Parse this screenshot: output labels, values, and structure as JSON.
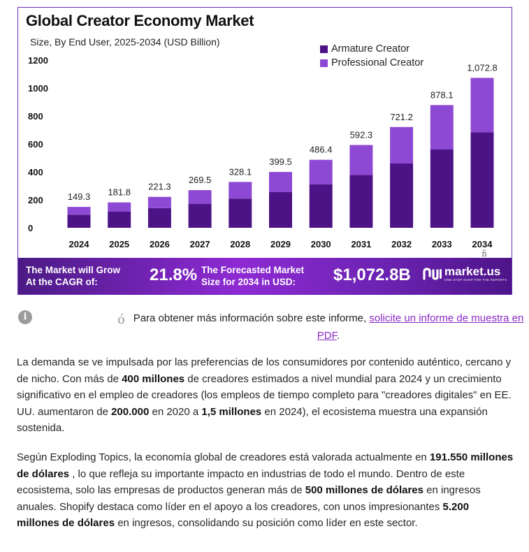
{
  "chart_data": {
    "type": "bar",
    "stacked": true,
    "title": "Global Creator Economy Market",
    "subtitle": "Size, By End User, 2025-2034 (USD Billion)",
    "categories": [
      "2024",
      "2025",
      "2026",
      "2027",
      "2028",
      "2029",
      "2030",
      "2031",
      "2032",
      "2033",
      "2034"
    ],
    "series": [
      {
        "name": "Armature Creator",
        "color": "#4c1386",
        "values": [
          94,
          115,
          141,
          172,
          209,
          255,
          310,
          378,
          460,
          560,
          684
        ]
      },
      {
        "name": "Professional Creator",
        "color": "#8d49d3",
        "values": [
          55.3,
          66.8,
          80.3,
          97.5,
          119.1,
          144.5,
          176.4,
          214.3,
          261.2,
          318.1,
          388.8
        ]
      }
    ],
    "totals_labels": [
      "149.3",
      "181.8",
      "221.3",
      "269.5",
      "328.1",
      "399.5",
      "486.4",
      "592.3",
      "721.2",
      "878.1",
      "1,072.8"
    ],
    "yticks": [
      "0",
      "200",
      "400",
      "600",
      "800",
      "1000",
      "1200"
    ],
    "ylim": [
      0,
      1200
    ],
    "xlabel": "",
    "ylabel": "",
    "stray_mark": "ñ"
  },
  "banner": {
    "cagr_label": "The Market will Grow\nAt the CAGR of:",
    "cagr_value": "21.8%",
    "forecast_label": "The Forecasted Market\nSize for 2034 in USD:",
    "forecast_value": "$1,072.8B",
    "brand_name": "market.us",
    "brand_tagline": "ONE STOP SHOP FOR THE REPORTS"
  },
  "info": {
    "stray_char": "ó",
    "text": "Para obtener más información sobre este informe, ",
    "link": "solicite un informe de muestra en PDF",
    "after": "."
  },
  "paragraph1": {
    "t1": "La demanda se ve impulsada por las preferencias de los consumidores por contenido auténtico, cercano y de nicho. Con más de ",
    "b1": "400 millones",
    "t2": " de creadores estimados a nivel mundial para 2024 y un crecimiento significativo en el empleo de creadores (los empleos de tiempo completo para \"creadores digitales\" en EE. UU. aumentaron de ",
    "b2": "200.000",
    "t3": " en 2020 a ",
    "b3": "1,5 millones",
    "t4": " en 2024), el ecosistema muestra una expansión sostenida."
  },
  "paragraph2": {
    "t1": "Según Exploding Topics, la economía global de creadores está valorada actualmente en ",
    "b1": "191.550 millones de dólares",
    "t2": " , lo que refleja su importante impacto en industrias de todo el mundo. Dentro de este ecosistema, solo las empresas de productos generan más de ",
    "b2": "500 millones de dólares",
    "t3": " en ingresos anuales. Shopify destaca como líder en el apoyo a los creadores, con unos impresionantes ",
    "b3": "5.200 millones de dólares",
    "t4": " en ingresos, consolidando su posición como líder en este sector."
  }
}
